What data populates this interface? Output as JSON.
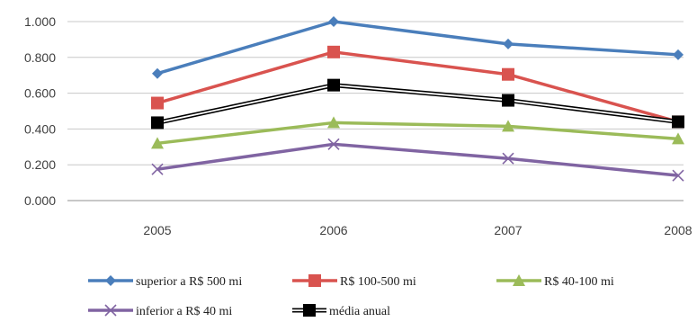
{
  "chart_data": {
    "type": "line",
    "title": "",
    "xlabel": "",
    "ylabel": "",
    "categories": [
      "2005",
      "2006",
      "2007",
      "2008"
    ],
    "ylim": [
      0,
      1
    ],
    "yticks": [
      0,
      0.2,
      0.4,
      0.6,
      0.8,
      1.0
    ],
    "ytick_labels": [
      "0.000",
      "0.200",
      "0.400",
      "0.600",
      "0.800",
      "1.000"
    ],
    "grid": true,
    "legend_position": "bottom",
    "series": [
      {
        "name": "superior a R$ 500 mi",
        "values": [
          0.71,
          1.0,
          0.875,
          0.815
        ],
        "color": "#4a7ebb",
        "marker": "diamond",
        "line_style": "solid"
      },
      {
        "name": "R$ 100-500 mi",
        "values": [
          0.545,
          0.83,
          0.705,
          0.44
        ],
        "color": "#d9534f",
        "marker": "square",
        "line_style": "solid"
      },
      {
        "name": "R$ 40-100 mi",
        "values": [
          0.32,
          0.435,
          0.415,
          0.345
        ],
        "color": "#9bbb59",
        "marker": "triangle",
        "line_style": "solid"
      },
      {
        "name": "inferior a R$ 40 mi",
        "values": [
          0.175,
          0.315,
          0.235,
          0.14
        ],
        "color": "#8064a2",
        "marker": "x",
        "line_style": "solid"
      },
      {
        "name": "média anual",
        "values": [
          0.435,
          0.645,
          0.56,
          0.44
        ],
        "color": "#000000",
        "marker": "square",
        "line_style": "double"
      }
    ]
  }
}
